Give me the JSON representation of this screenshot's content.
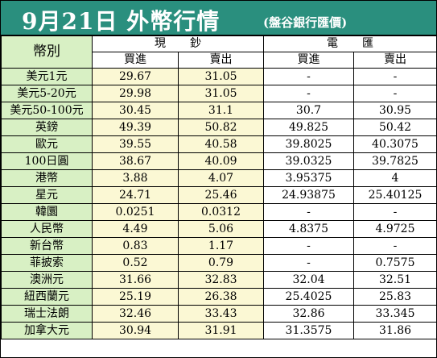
{
  "header": {
    "title": "9月21日 外幣行情",
    "subtitle": "(盤谷銀行匯價)"
  },
  "table": {
    "currency_header": "幣別",
    "cash_label": "現鈔",
    "wire_label": "電匯",
    "buy_label": "買進",
    "sell_label": "賣出",
    "rows": [
      {
        "name": "美元1元",
        "cash_buy": "29.67",
        "cash_sell": "31.05",
        "wire_buy": "-",
        "wire_sell": "-"
      },
      {
        "name": "美元5-20元",
        "cash_buy": "29.98",
        "cash_sell": "31.05",
        "wire_buy": "-",
        "wire_sell": "-"
      },
      {
        "name": "美元50-100元",
        "cash_buy": "30.45",
        "cash_sell": "31.1",
        "wire_buy": "30.7",
        "wire_sell": "30.95"
      },
      {
        "name": "英鎊",
        "cash_buy": "49.39",
        "cash_sell": "50.82",
        "wire_buy": "49.825",
        "wire_sell": "50.42"
      },
      {
        "name": "歐元",
        "cash_buy": "39.55",
        "cash_sell": "40.58",
        "wire_buy": "39.8025",
        "wire_sell": "40.3075"
      },
      {
        "name": "100日圓",
        "cash_buy": "38.67",
        "cash_sell": "40.09",
        "wire_buy": "39.0325",
        "wire_sell": "39.7825"
      },
      {
        "name": "港幣",
        "cash_buy": "3.88",
        "cash_sell": "4.07",
        "wire_buy": "3.95375",
        "wire_sell": "4"
      },
      {
        "name": "星元",
        "cash_buy": "24.71",
        "cash_sell": "25.46",
        "wire_buy": "24.93875",
        "wire_sell": "25.40125"
      },
      {
        "name": "韓圜",
        "cash_buy": "0.0251",
        "cash_sell": "0.0312",
        "wire_buy": "-",
        "wire_sell": "-"
      },
      {
        "name": "人民幣",
        "cash_buy": "4.49",
        "cash_sell": "5.06",
        "wire_buy": "4.8375",
        "wire_sell": "4.9725"
      },
      {
        "name": "新台幣",
        "cash_buy": "0.83",
        "cash_sell": "1.17",
        "wire_buy": "-",
        "wire_sell": "-"
      },
      {
        "name": "菲披索",
        "cash_buy": "0.52",
        "cash_sell": "0.79",
        "wire_buy": "-",
        "wire_sell": "0.7575"
      },
      {
        "name": "澳洲元",
        "cash_buy": "31.66",
        "cash_sell": "32.83",
        "wire_buy": "32.04",
        "wire_sell": "32.51"
      },
      {
        "name": "紐西蘭元",
        "cash_buy": "25.19",
        "cash_sell": "26.38",
        "wire_buy": "25.4025",
        "wire_sell": "25.83"
      },
      {
        "name": "瑞士法朗",
        "cash_buy": "32.46",
        "cash_sell": "33.43",
        "wire_buy": "32.86",
        "wire_sell": "33.345"
      },
      {
        "name": "加拿大元",
        "cash_buy": "30.94",
        "cash_sell": "31.91",
        "wire_buy": "31.3575",
        "wire_sell": "31.86"
      }
    ]
  },
  "colors": {
    "banner": "#2a8f7e",
    "currency_column": "#d8f0c4",
    "cash_columns": "#fbf8d4",
    "wire_columns": "#ffffff"
  }
}
